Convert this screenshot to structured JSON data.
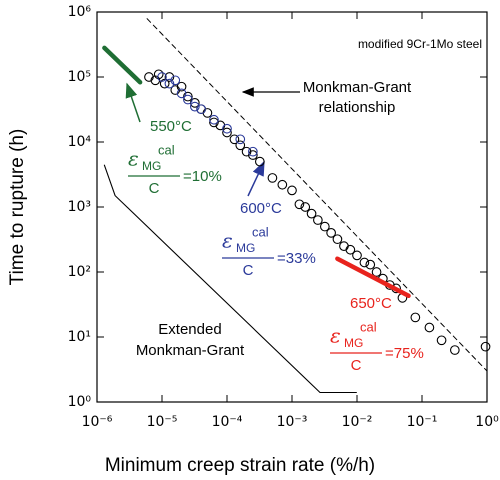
{
  "chart_data": {
    "type": "scatter",
    "xlabel": "Minimum creep strain rate (%/h)",
    "ylabel": "Time to rupture (h)",
    "xscale": "log",
    "yscale": "log",
    "xlim": [
      1e-06,
      1
    ],
    "ylim": [
      1,
      1000000
    ],
    "xticks": [
      {
        "value": 1e-06,
        "label": "10⁻⁶"
      },
      {
        "value": 1e-05,
        "label": "10⁻⁵"
      },
      {
        "value": 0.0001,
        "label": "10⁻⁴"
      },
      {
        "value": 0.001,
        "label": "10⁻³"
      },
      {
        "value": 0.01,
        "label": "10⁻²"
      },
      {
        "value": 0.1,
        "label": "10⁻¹"
      },
      {
        "value": 1,
        "label": "10⁰"
      }
    ],
    "yticks": [
      {
        "value": 1,
        "label": "10⁰"
      },
      {
        "value": 10,
        "label": "10¹"
      },
      {
        "value": 100,
        "label": "10²"
      },
      {
        "value": 1000,
        "label": "10³"
      },
      {
        "value": 10000,
        "label": "10⁴"
      },
      {
        "value": 100000,
        "label": "10⁵"
      },
      {
        "value": 1000000,
        "label": "10⁶"
      }
    ],
    "series": [
      {
        "style": "circle",
        "color": "#000000",
        "x": [
          6.3e-06,
          7.9e-06,
          8.9e-06,
          1.1e-05,
          1.3e-05,
          1.6e-05,
          2e-05,
          2.5e-05,
          3.2e-05,
          4e-05,
          5e-05,
          6.3e-05,
          7.9e-05,
          0.0001,
          0.00013,
          0.00016,
          0.0002,
          0.00025,
          0.00032,
          0.0005,
          0.00071,
          0.001,
          0.0013,
          0.0016,
          0.002,
          0.0025,
          0.0032,
          0.004,
          0.005,
          0.0063,
          0.0079,
          0.01,
          0.013,
          0.016,
          0.02,
          0.025,
          0.032,
          0.04,
          0.05,
          0.079,
          0.13,
          0.2,
          0.32,
          0.95
        ],
        "y": [
          100000,
          89000,
          110000,
          79000,
          100000,
          63000,
          71000,
          50000,
          40000,
          32000,
          28000,
          20000,
          18000,
          14000,
          11000,
          8900,
          7100,
          6300,
          5000,
          2800,
          2200,
          1800,
          1100,
          1000,
          790,
          630,
          500,
          400,
          320,
          250,
          220,
          180,
          140,
          130,
          100,
          79,
          63,
          56,
          40,
          20,
          14,
          8.9,
          6.3,
          7.1
        ]
      },
      {
        "style": "circle",
        "color": "#2b3a9a",
        "x": [
          1e-05,
          1.3e-05,
          1.6e-05,
          2e-05,
          2.5e-05,
          3.2e-05,
          4e-05,
          6.3e-05,
          0.0001,
          0.00016,
          0.00025
        ],
        "y": [
          100000,
          79000,
          89000,
          56000,
          45000,
          35000,
          32000,
          22000,
          16000,
          11000,
          7100
        ]
      },
      {
        "style": "line",
        "color": "#1f6e34",
        "x": [
          1.3e-06,
          4.6e-06
        ],
        "y": [
          280000,
          83000
        ]
      },
      {
        "style": "line",
        "color": "#e8231d",
        "x": [
          0.005,
          0.062
        ],
        "y": [
          160.0,
          43
        ]
      },
      {
        "style": "dashed",
        "color": "#000000",
        "x": [
          5.9e-06,
          1
        ],
        "y": [
          790000,
          3
        ]
      },
      {
        "style": "thin",
        "color": "#000000",
        "x": [
          1.3e-06,
          1.9e-06,
          0.0027,
          0.0098
        ],
        "y": [
          4400,
          1500,
          1.4,
          1.4
        ]
      }
    ],
    "material": "modified 9Cr-1Mo steel",
    "mg_relationship": [
      "Monkman-Grant",
      "relationship"
    ],
    "extended_mg": [
      "Extended",
      "Monkman-Grant"
    ],
    "temperatures": [
      {
        "label": "550°C",
        "color": "#1f6e34",
        "symbol": "ε",
        "sub": "MG",
        "sup": "cal",
        "den": "C",
        "ratio": "=10%"
      },
      {
        "label": "600°C",
        "color": "#2b3a9a",
        "symbol": "ε",
        "sub": "MG",
        "sup": "cal",
        "den": "C",
        "ratio": "=33%"
      },
      {
        "label": "650°C",
        "color": "#e8231d",
        "symbol": "ε",
        "sub": "MG",
        "sup": "cal",
        "den": "C",
        "ratio": "=75%"
      }
    ]
  }
}
